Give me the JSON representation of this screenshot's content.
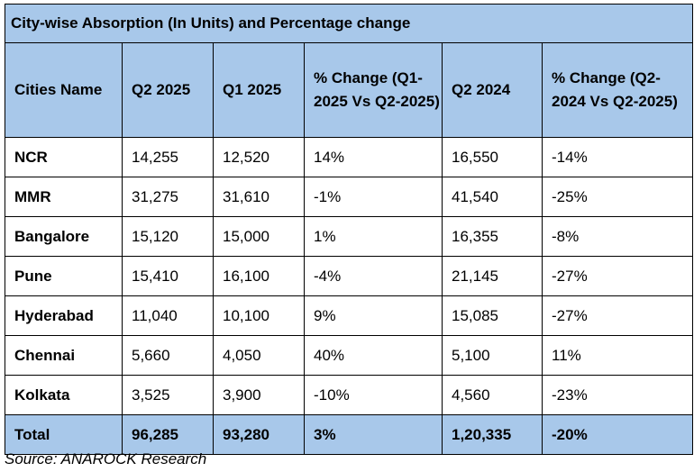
{
  "title": "City-wise Absorption (In Units) and Percentage change",
  "headers": [
    "Cities Name",
    "Q2 2025",
    "Q1 2025",
    "% Change (Q1-2025 Vs Q2-2025)",
    "Q2 2024",
    "% Change (Q2-2024 Vs Q2-2025)"
  ],
  "rows": [
    [
      "NCR",
      "14,255",
      "12,520",
      "14%",
      "16,550",
      "-14%"
    ],
    [
      "MMR",
      "31,275",
      "31,610",
      "-1%",
      "41,540",
      "-25%"
    ],
    [
      "Bangalore",
      "15,120",
      "15,000",
      "1%",
      "16,355",
      "-8%"
    ],
    [
      "Pune",
      "15,410",
      "16,100",
      "-4%",
      "21,145",
      "-27%"
    ],
    [
      "Hyderabad",
      "11,040",
      "10,100",
      "9%",
      "15,085",
      "-27%"
    ],
    [
      "Chennai",
      "5,660",
      "4,050",
      "40%",
      "5,100",
      "11%"
    ],
    [
      "Kolkata",
      "3,525",
      "3,900",
      "-10%",
      "4,560",
      "-23%"
    ]
  ],
  "total": [
    "Total",
    "96,285",
    "93,280",
    "3%",
    "1,20,335",
    "-20%"
  ],
  "source": "Source: ANAROCK Research",
  "colors": {
    "header_bg": "#a8c8ea",
    "border": "#000000"
  }
}
